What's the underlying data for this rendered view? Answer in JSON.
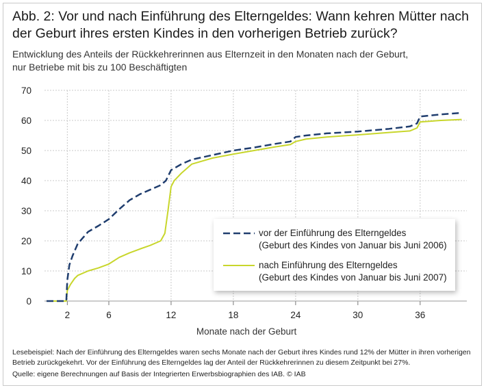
{
  "title": "Abb. 2: Vor und nach Einführung des Elterngeldes: Wann kehren Mütter nach der Geburt ihres ersten Kindes in den vorherigen Betrieb zurück?",
  "subtitle_line1": "Entwicklung des Anteils der Rückkehrerinnen aus Elternzeit in den Monaten nach der Geburt,",
  "subtitle_line2": "nur Betriebe mit bis zu 100 Beschäftigten",
  "footnote": "Lesebeispiel: Nach der Einführung des Elterngeldes waren sechs Monate nach der Geburt ihres Kindes rund 12% der Mütter in ihren vorherigen Betrieb zurückgekehrt. Vor der Einführung des Elterngeldes lag der Anteil der Rückkehrerinnen zu diesem Zeitpunkt bei 27%.",
  "source": "Quelle: eigene Berechnungen auf Basis der Integrierten Erwerbsbiographien des IAB. © IAB",
  "colors": {
    "before": "#1f3d6e",
    "after": "#c8d62b",
    "grid": "#c8c8c8"
  },
  "chart_data": {
    "type": "line",
    "title": "Abb. 2: Vor und nach Einführung des Elterngeldes: Wann kehren Mütter nach der Geburt ihres ersten Kindes in den vorherigen Betrieb zurück?",
    "xlabel": "Monate nach der Geburt",
    "ylabel": "",
    "xlim": [
      -0.2,
      40.5
    ],
    "ylim": [
      0,
      70
    ],
    "xticks": [
      2,
      6,
      12,
      18,
      24,
      30,
      36
    ],
    "yticks": [
      0,
      10,
      20,
      30,
      40,
      50,
      60,
      70
    ],
    "grid": true,
    "legend_position": "bottom-right",
    "series": [
      {
        "name": "vor der Einführung des Elterngeldes",
        "name_detail": "(Geburt des Kindes von Januar bis Juni 2006)",
        "style": "dashed",
        "x": [
          0,
          1,
          1.9,
          2,
          2.2,
          2.5,
          3,
          3.5,
          4,
          5,
          6,
          7,
          8,
          9,
          10,
          11,
          11.5,
          12,
          13,
          14,
          16,
          18,
          20,
          22,
          23.5,
          24,
          25,
          27,
          30,
          33,
          35,
          35.7,
          36,
          38,
          40
        ],
        "values": [
          0,
          0,
          0,
          7,
          12,
          15,
          19,
          21,
          23,
          25,
          27.2,
          30.5,
          33.5,
          35.5,
          37,
          38.5,
          40,
          43.5,
          45.5,
          47,
          48.5,
          50,
          51,
          52.2,
          53,
          54.5,
          55,
          55.7,
          56.3,
          57.2,
          58,
          59,
          61.3,
          62,
          62.5
        ]
      },
      {
        "name": "nach Einführung des Elterngeldes",
        "name_detail": "(Geburt des Kindes von Januar bis Juni 2007)",
        "style": "solid",
        "x": [
          0,
          1,
          1.9,
          2,
          2.3,
          2.7,
          3,
          4,
          5,
          6,
          7,
          8,
          9,
          10,
          11,
          11.4,
          11.7,
          12,
          12.3,
          13,
          14,
          16,
          18,
          20,
          22,
          23.5,
          24,
          25,
          27,
          30,
          33,
          35,
          35.7,
          36,
          38,
          40
        ],
        "values": [
          0,
          0,
          0,
          3.5,
          5.5,
          7.5,
          8.5,
          10,
          11,
          12.3,
          14.5,
          16,
          17.3,
          18.5,
          20,
          22.5,
          30,
          38,
          40,
          42.5,
          45.5,
          47.5,
          48.8,
          50,
          51.2,
          52,
          53,
          53.8,
          54.5,
          55.2,
          56,
          56.5,
          57.5,
          59.5,
          60,
          60.3
        ]
      }
    ]
  }
}
